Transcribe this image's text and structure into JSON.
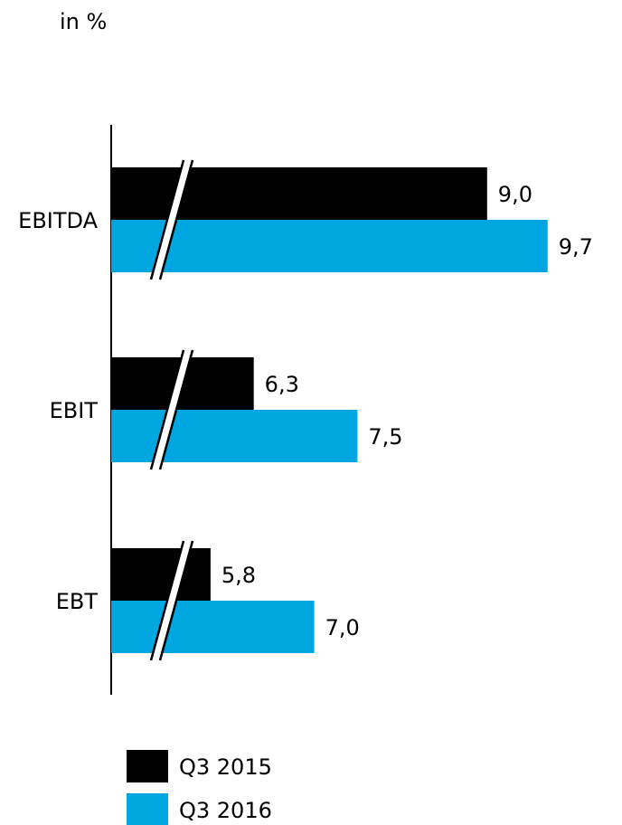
{
  "chart_data": {
    "type": "bar",
    "orientation": "horizontal",
    "unit_label": "in %",
    "categories": [
      "EBITDA",
      "EBIT",
      "EBT"
    ],
    "series": [
      {
        "name": "Q3 2015",
        "color": "#000000",
        "values": [
          9.0,
          6.3,
          5.8
        ],
        "labels": [
          "9,0",
          "6,3",
          "5,8"
        ]
      },
      {
        "name": "Q3 2016",
        "color": "#00a6e0",
        "values": [
          9.7,
          7.5,
          7.0
        ],
        "labels": [
          "9,7",
          "7,5",
          "7,0"
        ]
      }
    ],
    "axis_break": true,
    "legend_position": "bottom-left",
    "grid": false
  }
}
